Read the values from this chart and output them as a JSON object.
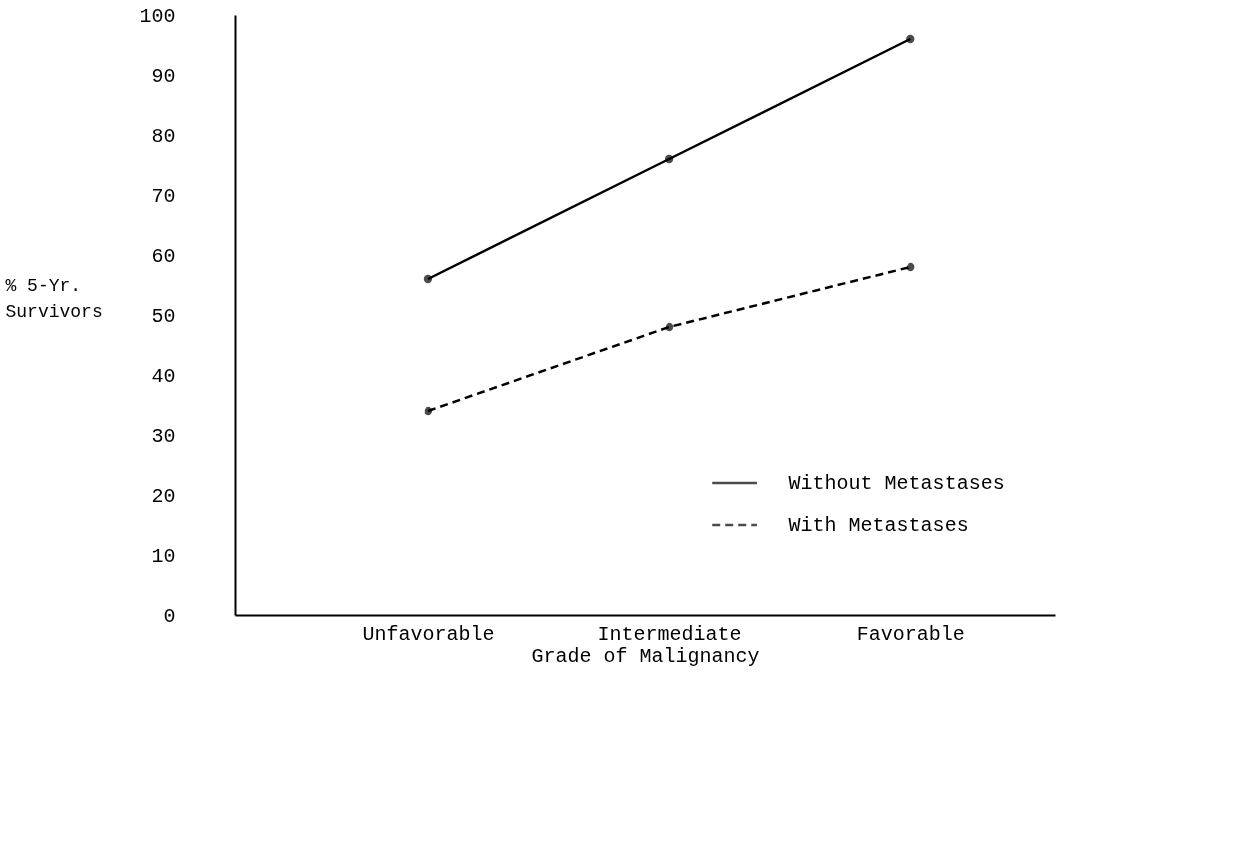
{
  "chart_data": {
    "type": "line",
    "xlabel": "Grade of Malignancy",
    "ylabel": "% 5-Yr. Survivors",
    "categories": [
      "Unfavorable",
      "Intermediate",
      "Favorable"
    ],
    "series": [
      {
        "name": "Without Metastases",
        "color": "#000000",
        "line_style": "solid",
        "values": [
          56,
          76,
          96
        ]
      },
      {
        "name": "With Metastases",
        "color": "#000000",
        "line_style": "dashed",
        "values": [
          34,
          48,
          58
        ]
      }
    ],
    "ylim": [
      0,
      100
    ],
    "yticks": [
      0,
      10,
      20,
      30,
      40,
      50,
      60,
      70,
      80,
      90,
      100
    ],
    "marker": "circle",
    "legend": "bottom right",
    "grid": false
  }
}
